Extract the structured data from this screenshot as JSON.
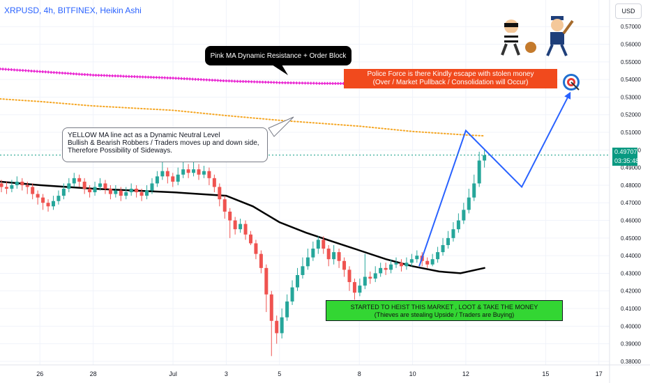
{
  "header": {
    "title": "XRPUSD, 4h, BITFINEX, Heikin Ashi",
    "currency_button": "USD"
  },
  "price_badge": {
    "price": "0.49707",
    "countdown": "03:35:48",
    "color": "#089981"
  },
  "annotations": {
    "pink": "Pink MA Dynamic Resistance + Order Block",
    "yellow": [
      "YELLOW MA line act as a Dynamic Neutral Level",
      "Bullish & Bearish Robbers / Traders moves up and down side,",
      "Therefore Possibility of Sideways."
    ],
    "police": [
      "Police Force is there Kindly escape with stolen money",
      "(Over / Market Pullback / Consolidation will Occur)"
    ],
    "heist": [
      "STARTED TO HEIST THIS MARKET , LOOT & TAKE THE MONEY",
      "(Thieves are stealing Upside / Traders are Buying)"
    ]
  },
  "icons": {
    "thief": "thief-icon",
    "police": "police-icon",
    "target": "target-icon"
  },
  "colors": {
    "up": "#26a69a",
    "down": "#ef5350",
    "pink_ma": "#e91ed0",
    "yellow_ma": "#f5a623",
    "black_ma": "#000000",
    "projection": "#2962ff",
    "price_line": "#089981"
  },
  "chart_data": {
    "type": "candlestick",
    "symbol": "XRPUSD",
    "timeframe": "4h",
    "exchange": "BITFINEX",
    "style": "Heikin Ashi",
    "y_axis": {
      "ylim": [
        0.378,
        0.578
      ],
      "ticks": [
        0.38,
        0.39,
        0.4,
        0.41,
        0.42,
        0.43,
        0.44,
        0.45,
        0.46,
        0.47,
        0.48,
        0.49,
        0.5,
        0.51,
        0.52,
        0.53,
        0.54,
        0.55,
        0.56,
        0.57
      ],
      "tick_labels": [
        "0.38000",
        "0.39000",
        "0.40000",
        "0.41000",
        "0.42000",
        "0.43000",
        "0.44000",
        "0.45000",
        "0.46000",
        "0.47000",
        "0.48000",
        "0.49000",
        "0.50000",
        "0.51000",
        "0.52000",
        "0.53000",
        "0.54000",
        "0.55000",
        "0.56000",
        "0.57000"
      ]
    },
    "x_axis": {
      "day_range": [
        24.5,
        17.4
      ],
      "ticks": [
        {
          "label": "26",
          "day": 26
        },
        {
          "label": "28",
          "day": 28
        },
        {
          "label": "Jul",
          "day": 1
        },
        {
          "label": "3",
          "day": 3
        },
        {
          "label": "5",
          "day": 5
        },
        {
          "label": "8",
          "day": 8
        },
        {
          "label": "10",
          "day": 10
        },
        {
          "label": "12",
          "day": 12
        },
        {
          "label": "15",
          "day": 15
        },
        {
          "label": "17",
          "day": 17
        }
      ]
    },
    "candles": [
      [
        0.481,
        0.479,
        0.483,
        0.476
      ],
      [
        0.479,
        0.478,
        0.482,
        0.475
      ],
      [
        0.478,
        0.48,
        0.483,
        0.476
      ],
      [
        0.48,
        0.482,
        0.485,
        0.478
      ],
      [
        0.482,
        0.48,
        0.484,
        0.477
      ],
      [
        0.48,
        0.479,
        0.482,
        0.475
      ],
      [
        0.479,
        0.475,
        0.481,
        0.472
      ],
      [
        0.475,
        0.473,
        0.477,
        0.469
      ],
      [
        0.473,
        0.47,
        0.475,
        0.466
      ],
      [
        0.47,
        0.468,
        0.472,
        0.465
      ],
      [
        0.468,
        0.471,
        0.474,
        0.466
      ],
      [
        0.471,
        0.474,
        0.477,
        0.469
      ],
      [
        0.474,
        0.478,
        0.481,
        0.472
      ],
      [
        0.478,
        0.481,
        0.484,
        0.476
      ],
      [
        0.481,
        0.484,
        0.487,
        0.479
      ],
      [
        0.484,
        0.482,
        0.486,
        0.479
      ],
      [
        0.482,
        0.478,
        0.484,
        0.475
      ],
      [
        0.478,
        0.476,
        0.48,
        0.473
      ],
      [
        0.476,
        0.479,
        0.482,
        0.474
      ],
      [
        0.479,
        0.481,
        0.484,
        0.477
      ],
      [
        0.481,
        0.478,
        0.483,
        0.475
      ],
      [
        0.478,
        0.475,
        0.48,
        0.472
      ],
      [
        0.475,
        0.477,
        0.48,
        0.473
      ],
      [
        0.477,
        0.474,
        0.479,
        0.471
      ],
      [
        0.474,
        0.476,
        0.479,
        0.472
      ],
      [
        0.476,
        0.478,
        0.481,
        0.474
      ],
      [
        0.478,
        0.476,
        0.48,
        0.473
      ],
      [
        0.476,
        0.474,
        0.478,
        0.471
      ],
      [
        0.474,
        0.477,
        0.48,
        0.472
      ],
      [
        0.477,
        0.481,
        0.484,
        0.475
      ],
      [
        0.481,
        0.485,
        0.488,
        0.479
      ],
      [
        0.485,
        0.488,
        0.493,
        0.483
      ],
      [
        0.488,
        0.485,
        0.49,
        0.481
      ],
      [
        0.485,
        0.482,
        0.487,
        0.479
      ],
      [
        0.482,
        0.486,
        0.49,
        0.48
      ],
      [
        0.486,
        0.489,
        0.495,
        0.484
      ],
      [
        0.489,
        0.487,
        0.492,
        0.484
      ],
      [
        0.487,
        0.489,
        0.494,
        0.485
      ],
      [
        0.489,
        0.486,
        0.492,
        0.483
      ],
      [
        0.486,
        0.488,
        0.491,
        0.484
      ],
      [
        0.488,
        0.484,
        0.49,
        0.48
      ],
      [
        0.484,
        0.479,
        0.486,
        0.476
      ],
      [
        0.479,
        0.472,
        0.481,
        0.468
      ],
      [
        0.472,
        0.465,
        0.474,
        0.461
      ],
      [
        0.465,
        0.46,
        0.467,
        0.45
      ],
      [
        0.46,
        0.455,
        0.462,
        0.452
      ],
      [
        0.455,
        0.458,
        0.461,
        0.453
      ],
      [
        0.458,
        0.452,
        0.46,
        0.449
      ],
      [
        0.452,
        0.447,
        0.454,
        0.446
      ],
      [
        0.447,
        0.441,
        0.449,
        0.438
      ],
      [
        0.441,
        0.433,
        0.443,
        0.43
      ],
      [
        0.433,
        0.418,
        0.435,
        0.408
      ],
      [
        0.418,
        0.403,
        0.42,
        0.383
      ],
      [
        0.403,
        0.396,
        0.406,
        0.39
      ],
      [
        0.396,
        0.405,
        0.41,
        0.393
      ],
      [
        0.405,
        0.414,
        0.418,
        0.403
      ],
      [
        0.414,
        0.422,
        0.426,
        0.412
      ],
      [
        0.422,
        0.429,
        0.433,
        0.42
      ],
      [
        0.429,
        0.434,
        0.439,
        0.427
      ],
      [
        0.434,
        0.439,
        0.444,
        0.432
      ],
      [
        0.439,
        0.444,
        0.448,
        0.437
      ],
      [
        0.444,
        0.449,
        0.451,
        0.441
      ],
      [
        0.449,
        0.444,
        0.451,
        0.441
      ],
      [
        0.444,
        0.438,
        0.446,
        0.434
      ],
      [
        0.438,
        0.442,
        0.446,
        0.435
      ],
      [
        0.442,
        0.437,
        0.444,
        0.433
      ],
      [
        0.437,
        0.432,
        0.439,
        0.428
      ],
      [
        0.432,
        0.425,
        0.434,
        0.42
      ],
      [
        0.425,
        0.419,
        0.427,
        0.415
      ],
      [
        0.419,
        0.423,
        0.427,
        0.417
      ],
      [
        0.423,
        0.428,
        0.441,
        0.421
      ],
      [
        0.428,
        0.427,
        0.431,
        0.424
      ],
      [
        0.427,
        0.43,
        0.434,
        0.425
      ],
      [
        0.43,
        0.433,
        0.436,
        0.428
      ],
      [
        0.433,
        0.432,
        0.436,
        0.429
      ],
      [
        0.432,
        0.435,
        0.438,
        0.43
      ],
      [
        0.435,
        0.436,
        0.439,
        0.433
      ],
      [
        0.436,
        0.434,
        0.438,
        0.431
      ],
      [
        0.434,
        0.436,
        0.439,
        0.432
      ],
      [
        0.436,
        0.438,
        0.441,
        0.434
      ],
      [
        0.438,
        0.44,
        0.443,
        0.436
      ],
      [
        0.44,
        0.437,
        0.442,
        0.434
      ],
      [
        0.437,
        0.435,
        0.439,
        0.433
      ],
      [
        0.435,
        0.438,
        0.441,
        0.434
      ],
      [
        0.438,
        0.442,
        0.445,
        0.436
      ],
      [
        0.442,
        0.446,
        0.45,
        0.44
      ],
      [
        0.446,
        0.45,
        0.454,
        0.444
      ],
      [
        0.45,
        0.455,
        0.459,
        0.448
      ],
      [
        0.455,
        0.46,
        0.464,
        0.453
      ],
      [
        0.46,
        0.466,
        0.47,
        0.458
      ],
      [
        0.466,
        0.473,
        0.478,
        0.464
      ],
      [
        0.473,
        0.481,
        0.486,
        0.471
      ],
      [
        0.481,
        0.494,
        0.499,
        0.479
      ],
      [
        0.494,
        0.497,
        0.5,
        0.49
      ]
    ],
    "moving_averages": [
      {
        "name": "Pink MA",
        "style": "crosses",
        "points": [
          [
            24.5,
            0.546
          ],
          [
            26,
            0.5445
          ],
          [
            28,
            0.5425
          ],
          [
            1,
            0.5408
          ],
          [
            3,
            0.5392
          ],
          [
            5,
            0.5382
          ],
          [
            6.5,
            0.5378
          ],
          [
            7.5,
            0.5377
          ]
        ]
      },
      {
        "name": "Yellow MA",
        "style": "dotted",
        "points": [
          [
            24.5,
            0.529
          ],
          [
            26,
            0.5275
          ],
          [
            28,
            0.525
          ],
          [
            1,
            0.5225
          ],
          [
            3,
            0.5195
          ],
          [
            5,
            0.5168
          ],
          [
            8,
            0.5135
          ],
          [
            10,
            0.5105
          ],
          [
            12,
            0.5085
          ],
          [
            12.7,
            0.508
          ]
        ]
      },
      {
        "name": "Black MA",
        "style": "solid",
        "points": [
          [
            24.5,
            0.482
          ],
          [
            26,
            0.48
          ],
          [
            28,
            0.478
          ],
          [
            1,
            0.476
          ],
          [
            2,
            0.475
          ],
          [
            3,
            0.474
          ],
          [
            4,
            0.468
          ],
          [
            5,
            0.459
          ],
          [
            6,
            0.453
          ],
          [
            7,
            0.448
          ],
          [
            8,
            0.443
          ],
          [
            9,
            0.438
          ],
          [
            10,
            0.434
          ],
          [
            11,
            0.431
          ],
          [
            11.8,
            0.43
          ],
          [
            12.7,
            0.433
          ]
        ]
      }
    ],
    "projection": {
      "points": [
        [
          10.25,
          0.434
        ],
        [
          12,
          0.511
        ],
        [
          14.1,
          0.479
        ],
        [
          15.9,
          0.532
        ]
      ]
    },
    "last_price": 0.49707
  }
}
